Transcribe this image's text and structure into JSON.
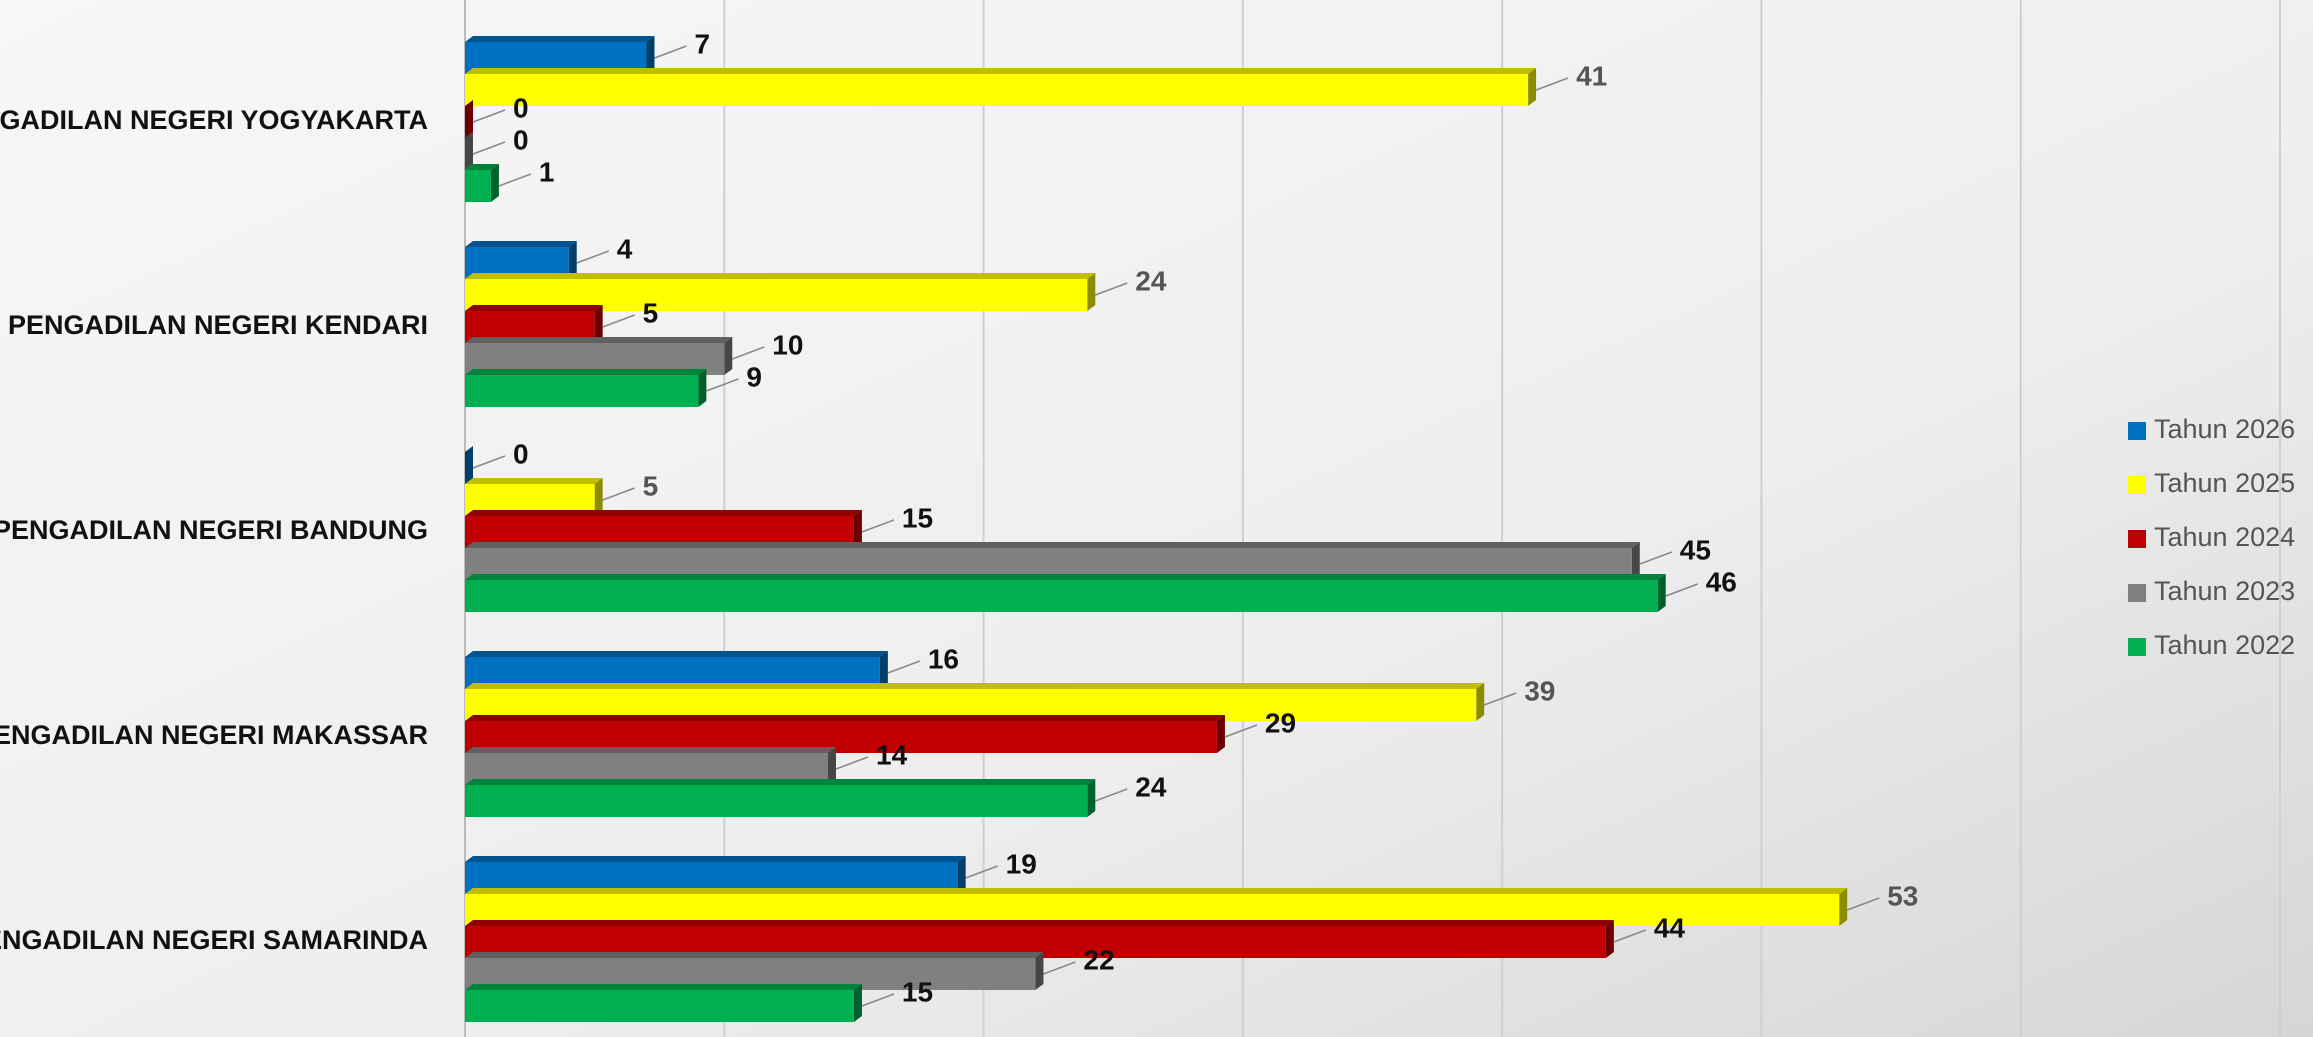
{
  "chart_data": {
    "type": "bar",
    "orientation": "horizontal",
    "categories": [
      "PENGADILAN NEGERI YOGYAKARTA",
      "PENGADILAN NEGERI KENDARI",
      "PENGADILAN NEGERI BANDUNG",
      "PENGADILAN NEGERI MAKASSAR",
      "PENGADILAN NEGERI SAMARINDA"
    ],
    "series": [
      {
        "name": "Tahun 2026",
        "color": "#0070c0",
        "values": [
          7,
          4,
          0,
          16,
          19
        ]
      },
      {
        "name": "Tahun 2025",
        "color": "#ffff00",
        "values": [
          41,
          24,
          5,
          39,
          53
        ]
      },
      {
        "name": "Tahun 2024",
        "color": "#c00000",
        "values": [
          0,
          5,
          15,
          29,
          44
        ]
      },
      {
        "name": "Tahun 2023",
        "color": "#808080",
        "values": [
          0,
          10,
          45,
          14,
          22
        ]
      },
      {
        "name": "Tahun 2022",
        "color": "#00b050",
        "values": [
          1,
          9,
          46,
          24,
          15
        ]
      }
    ],
    "xlim": [
      0,
      70
    ],
    "xticks": [
      0,
      10,
      20,
      30,
      40,
      50,
      60,
      70
    ],
    "grid": true,
    "legend": "right"
  }
}
